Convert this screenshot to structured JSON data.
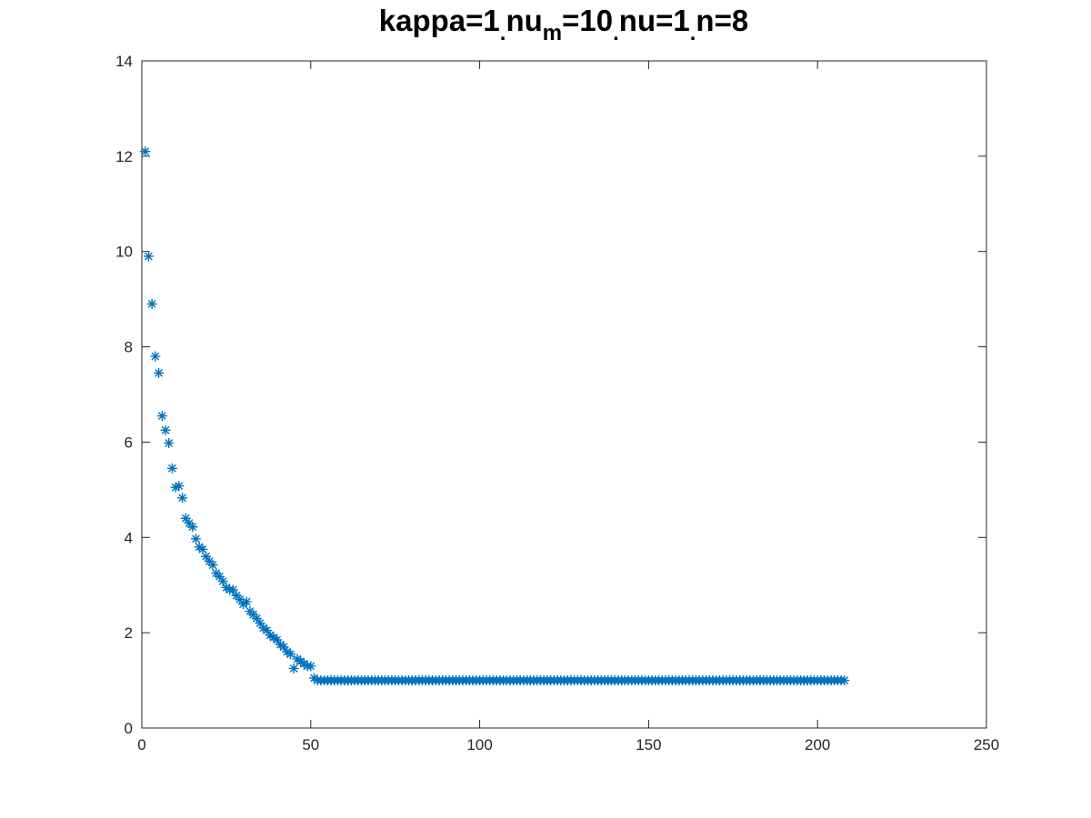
{
  "chart_data": {
    "type": "scatter",
    "title": [
      {
        "text": "kappa=1"
      },
      {
        "text": ".",
        "sub": true
      },
      {
        "text": "nu"
      },
      {
        "text": "m",
        "sub": true
      },
      {
        "text": "=10"
      },
      {
        "text": ".",
        "sub": true
      },
      {
        "text": "nu=1"
      },
      {
        "text": ".",
        "sub": true
      },
      {
        "text": "n=8"
      }
    ],
    "xlim": [
      0,
      250
    ],
    "xticks": [
      0,
      50,
      100,
      150,
      200,
      250
    ],
    "ylim": [
      0,
      14
    ],
    "yticks": [
      0,
      2,
      4,
      6,
      8,
      10,
      12,
      14
    ],
    "color": "#0072bd",
    "marker": "asterisk",
    "box": true,
    "x": [
      1,
      2,
      3,
      4,
      5,
      6,
      7,
      8,
      9,
      10,
      11,
      12,
      13,
      14,
      15,
      16,
      17,
      18,
      19,
      20,
      21,
      22,
      23,
      24,
      25,
      26,
      27,
      28,
      29,
      30,
      31,
      32,
      33,
      34,
      35,
      36,
      37,
      38,
      39,
      40,
      41,
      42,
      43,
      44,
      45,
      46,
      47,
      48,
      49,
      50,
      51,
      52,
      53,
      54,
      55,
      56,
      57,
      58,
      59,
      60,
      61,
      62,
      63,
      64,
      65,
      66,
      67,
      68,
      69,
      70,
      71,
      72,
      73,
      74,
      75,
      76,
      77,
      78,
      79,
      80,
      81,
      82,
      83,
      84,
      85,
      86,
      87,
      88,
      89,
      90,
      91,
      92,
      93,
      94,
      95,
      96,
      97,
      98,
      99,
      100,
      101,
      102,
      103,
      104,
      105,
      106,
      107,
      108,
      109,
      110,
      111,
      112,
      113,
      114,
      115,
      116,
      117,
      118,
      119,
      120,
      121,
      122,
      123,
      124,
      125,
      126,
      127,
      128,
      129,
      130,
      131,
      132,
      133,
      134,
      135,
      136,
      137,
      138,
      139,
      140,
      141,
      142,
      143,
      144,
      145,
      146,
      147,
      148,
      149,
      150,
      151,
      152,
      153,
      154,
      155,
      156,
      157,
      158,
      159,
      160,
      161,
      162,
      163,
      164,
      165,
      166,
      167,
      168,
      169,
      170,
      171,
      172,
      173,
      174,
      175,
      176,
      177,
      178,
      179,
      180,
      181,
      182,
      183,
      184,
      185,
      186,
      187,
      188,
      189,
      190,
      191,
      192,
      193,
      194,
      195,
      196,
      197,
      198,
      199,
      200,
      201,
      202,
      203,
      204,
      205,
      206,
      207,
      208
    ],
    "values": [
      12.1,
      9.9,
      8.9,
      7.8,
      7.45,
      6.55,
      6.25,
      5.98,
      5.45,
      5.05,
      5.08,
      4.83,
      4.4,
      4.3,
      4.22,
      3.97,
      3.8,
      3.75,
      3.6,
      3.5,
      3.42,
      3.25,
      3.18,
      3.08,
      2.95,
      2.9,
      2.9,
      2.78,
      2.7,
      2.6,
      2.65,
      2.45,
      2.38,
      2.3,
      2.2,
      2.1,
      2.05,
      1.95,
      1.9,
      1.85,
      1.75,
      1.7,
      1.6,
      1.55,
      1.25,
      1.45,
      1.4,
      1.35,
      1.3,
      1.3,
      1.05,
      1.0,
      1,
      1,
      1,
      1,
      1,
      1,
      1,
      1,
      1,
      1,
      1,
      1,
      1,
      1,
      1,
      1,
      1,
      1,
      1,
      1,
      1,
      1,
      1,
      1,
      1,
      1,
      1,
      1,
      1,
      1,
      1,
      1,
      1,
      1,
      1,
      1,
      1,
      1,
      1,
      1,
      1,
      1,
      1,
      1,
      1,
      1,
      1,
      1,
      1,
      1,
      1,
      1,
      1,
      1,
      1,
      1,
      1,
      1,
      1,
      1,
      1,
      1,
      1,
      1,
      1,
      1,
      1,
      1,
      1,
      1,
      1,
      1,
      1,
      1,
      1,
      1,
      1,
      1,
      1,
      1,
      1,
      1,
      1,
      1,
      1,
      1,
      1,
      1,
      1,
      1,
      1,
      1,
      1,
      1,
      1,
      1,
      1,
      1,
      1,
      1,
      1,
      1,
      1,
      1,
      1,
      1,
      1,
      1,
      1,
      1,
      1,
      1,
      1,
      1,
      1,
      1,
      1,
      1,
      1,
      1,
      1,
      1,
      1,
      1,
      1,
      1,
      1,
      1,
      1,
      1,
      1,
      1,
      1,
      1,
      1,
      1,
      1,
      1,
      1,
      1,
      1,
      1,
      1,
      1,
      1,
      1,
      1,
      1,
      1,
      1,
      1,
      1,
      1,
      1,
      1,
      1
    ]
  }
}
